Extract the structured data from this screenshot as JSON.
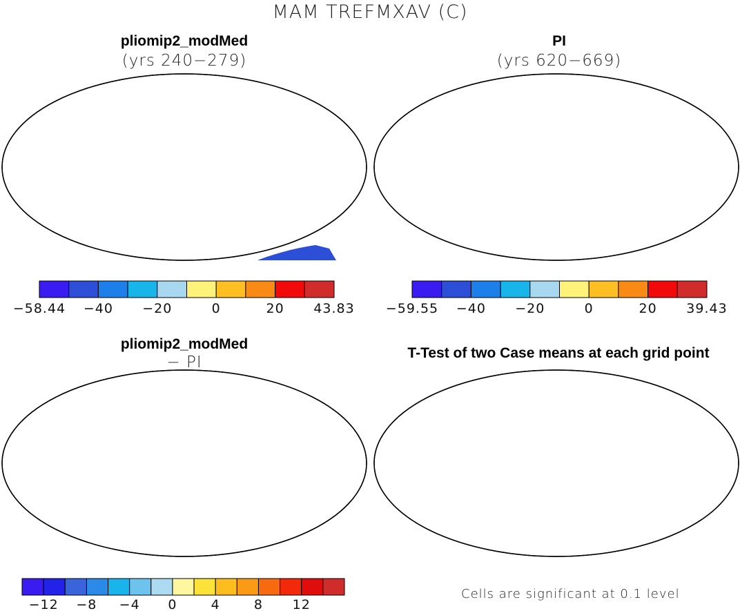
{
  "main_title": "MAM TREFMXAV (C)",
  "panels": [
    {
      "id": "top-left",
      "title": "pliomip2_modMed",
      "subtitle": "(yrs 240−279)",
      "colorbar": {
        "colors": [
          "#3a1bf0",
          "#2d4ed6",
          "#1e7fea",
          "#17b5ea",
          "#a8d8f0",
          "#fff27a",
          "#fdbf23",
          "#f98a15",
          "#f20a0a",
          "#d02c2c"
        ],
        "labels": [
          "−58.44",
          "−40",
          "−20",
          "0",
          "20",
          "43.83"
        ]
      }
    },
    {
      "id": "top-right",
      "title": "PI",
      "subtitle": "(yrs 620−669)",
      "colorbar": {
        "colors": [
          "#3a1bf0",
          "#2d4ed6",
          "#1e7fea",
          "#17b5ea",
          "#a8d8f0",
          "#fff27a",
          "#fdbf23",
          "#f98a15",
          "#f20a0a",
          "#d02c2c"
        ],
        "labels": [
          "−59.55",
          "−40",
          "−20",
          "0",
          "20",
          "39.43"
        ]
      }
    },
    {
      "id": "bottom-left",
      "title": "pliomip2_modMed",
      "subtitle": "− PI",
      "colorbar": {
        "colors": [
          "#3a1bf0",
          "#2222e8",
          "#3a64dc",
          "#2b8ae8",
          "#19b4ec",
          "#6cc3ee",
          "#acdaf0",
          "#fff7a0",
          "#fde23a",
          "#fdbe1d",
          "#fb9a14",
          "#f86a0f",
          "#f22a0a",
          "#e00d0d",
          "#d02c2c"
        ],
        "labels": [
          "−12",
          "−8",
          "−4",
          "0",
          "4",
          "8",
          "12"
        ]
      }
    },
    {
      "id": "bottom-right",
      "title": "T-Test of two Case means at each grid point",
      "note": "Cells are significant at 0.1 level"
    }
  ]
}
